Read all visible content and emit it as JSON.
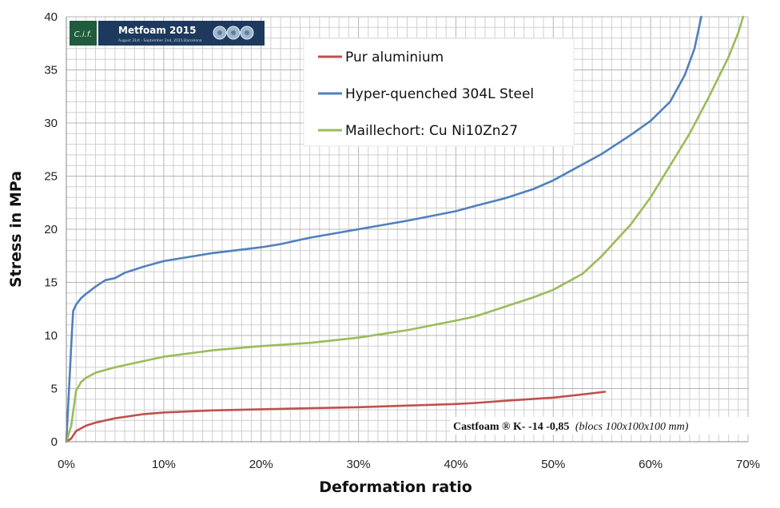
{
  "chart_data": {
    "type": "line",
    "xlabel": "Deformation ratio",
    "ylabel": "Stress in MPa",
    "xlim": [
      0,
      0.7
    ],
    "ylim": [
      0,
      40
    ],
    "x_ticks": [
      "0%",
      "10%",
      "20%",
      "30%",
      "40%",
      "50%",
      "60%",
      "70%"
    ],
    "y_ticks": [
      "0",
      "5",
      "10",
      "15",
      "20",
      "25",
      "30",
      "35",
      "40"
    ],
    "grid": true,
    "legend_position": "top-center",
    "annotation": {
      "main": "Castfoam ® K-   -14 -0,85",
      "italic": "(blocs 100x100x100 mm)"
    },
    "series": [
      {
        "name": "Pur aluminium",
        "color": "#c0504d",
        "points": [
          [
            0.0,
            0.0
          ],
          [
            0.005,
            0.3
          ],
          [
            0.01,
            1.0
          ],
          [
            0.02,
            1.5
          ],
          [
            0.03,
            1.8
          ],
          [
            0.05,
            2.2
          ],
          [
            0.08,
            2.6
          ],
          [
            0.1,
            2.75
          ],
          [
            0.15,
            2.95
          ],
          [
            0.2,
            3.05
          ],
          [
            0.25,
            3.15
          ],
          [
            0.3,
            3.25
          ],
          [
            0.35,
            3.4
          ],
          [
            0.4,
            3.55
          ],
          [
            0.42,
            3.65
          ],
          [
            0.45,
            3.85
          ],
          [
            0.5,
            4.15
          ],
          [
            0.53,
            4.45
          ],
          [
            0.553,
            4.7
          ]
        ]
      },
      {
        "name": "Hyper-quenched 304L Steel",
        "color": "#4f81bd",
        "points": [
          [
            0.0,
            0.0
          ],
          [
            0.005,
            9.0
          ],
          [
            0.007,
            12.3
          ],
          [
            0.01,
            12.9
          ],
          [
            0.015,
            13.5
          ],
          [
            0.02,
            13.9
          ],
          [
            0.03,
            14.6
          ],
          [
            0.04,
            15.2
          ],
          [
            0.05,
            15.4
          ],
          [
            0.06,
            15.9
          ],
          [
            0.08,
            16.5
          ],
          [
            0.1,
            17.0
          ],
          [
            0.12,
            17.3
          ],
          [
            0.15,
            17.75
          ],
          [
            0.2,
            18.3
          ],
          [
            0.22,
            18.6
          ],
          [
            0.25,
            19.2
          ],
          [
            0.3,
            20.0
          ],
          [
            0.35,
            20.8
          ],
          [
            0.4,
            21.7
          ],
          [
            0.42,
            22.2
          ],
          [
            0.45,
            22.9
          ],
          [
            0.48,
            23.8
          ],
          [
            0.5,
            24.6
          ],
          [
            0.55,
            27.1
          ],
          [
            0.58,
            28.9
          ],
          [
            0.6,
            30.2
          ],
          [
            0.62,
            32.0
          ],
          [
            0.635,
            34.5
          ],
          [
            0.645,
            37.0
          ],
          [
            0.652,
            40.0
          ]
        ]
      },
      {
        "name": "Maillechort: Cu Ni10Zn27",
        "color": "#9bbb59",
        "points": [
          [
            0.0,
            0.0
          ],
          [
            0.005,
            1.5
          ],
          [
            0.01,
            4.8
          ],
          [
            0.015,
            5.6
          ],
          [
            0.02,
            6.0
          ],
          [
            0.03,
            6.5
          ],
          [
            0.05,
            7.0
          ],
          [
            0.08,
            7.6
          ],
          [
            0.1,
            8.0
          ],
          [
            0.15,
            8.6
          ],
          [
            0.2,
            9.0
          ],
          [
            0.25,
            9.3
          ],
          [
            0.3,
            9.8
          ],
          [
            0.35,
            10.5
          ],
          [
            0.4,
            11.4
          ],
          [
            0.42,
            11.8
          ],
          [
            0.45,
            12.7
          ],
          [
            0.48,
            13.6
          ],
          [
            0.5,
            14.3
          ],
          [
            0.53,
            15.8
          ],
          [
            0.55,
            17.5
          ],
          [
            0.58,
            20.5
          ],
          [
            0.6,
            23.0
          ],
          [
            0.62,
            26.0
          ],
          [
            0.64,
            29.0
          ],
          [
            0.66,
            32.5
          ],
          [
            0.68,
            36.2
          ],
          [
            0.69,
            38.5
          ],
          [
            0.695,
            40.0
          ]
        ]
      }
    ]
  },
  "logo": {
    "title": "Metfoam 2015",
    "subtitle": "August 31st - September 2nd, 2015 Barcelona",
    "mark": "C.i.f."
  }
}
